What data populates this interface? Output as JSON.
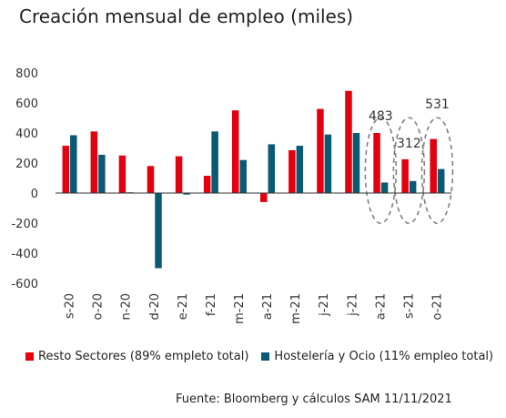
{
  "title": "Creación mensual de empleo (miles)",
  "source": "Fuente: Bloomberg y cálculos SAM  11/11/2021",
  "colors": {
    "series1": "#e3000f",
    "series2": "#0b5a73",
    "ellipse": "#7f7f7f",
    "zero_line": "#333333"
  },
  "chart_data": {
    "type": "bar",
    "categories": [
      "s-20",
      "o-20",
      "n-20",
      "d-20",
      "e-21",
      "f-21",
      "m-21",
      "a-21",
      "m-21",
      "j-21",
      "j-21",
      "a-21",
      "s-21",
      "o-21"
    ],
    "series": [
      {
        "name": "Resto Sectores (89% empleto total)",
        "values": [
          315,
          410,
          250,
          180,
          245,
          115,
          550,
          -60,
          285,
          560,
          680,
          400,
          225,
          360
        ]
      },
      {
        "name": "Hostelería y Ocio (11% empleo total)",
        "values": [
          385,
          255,
          5,
          -500,
          -10,
          410,
          220,
          325,
          315,
          390,
          400,
          70,
          80,
          160
        ]
      }
    ],
    "ylim": [
      -600,
      800
    ],
    "yticks": [
      "800",
      "600",
      "400",
      "200",
      "0",
      "-200",
      "-400",
      "-600"
    ],
    "ytick_values": [
      800,
      600,
      400,
      200,
      0,
      -200,
      -400,
      -600
    ],
    "annotations": [
      {
        "category_index": 11,
        "label": "483"
      },
      {
        "category_index": 12,
        "label": "312"
      },
      {
        "category_index": 13,
        "label": "531"
      }
    ],
    "grid": false,
    "legend_position": "bottom"
  }
}
